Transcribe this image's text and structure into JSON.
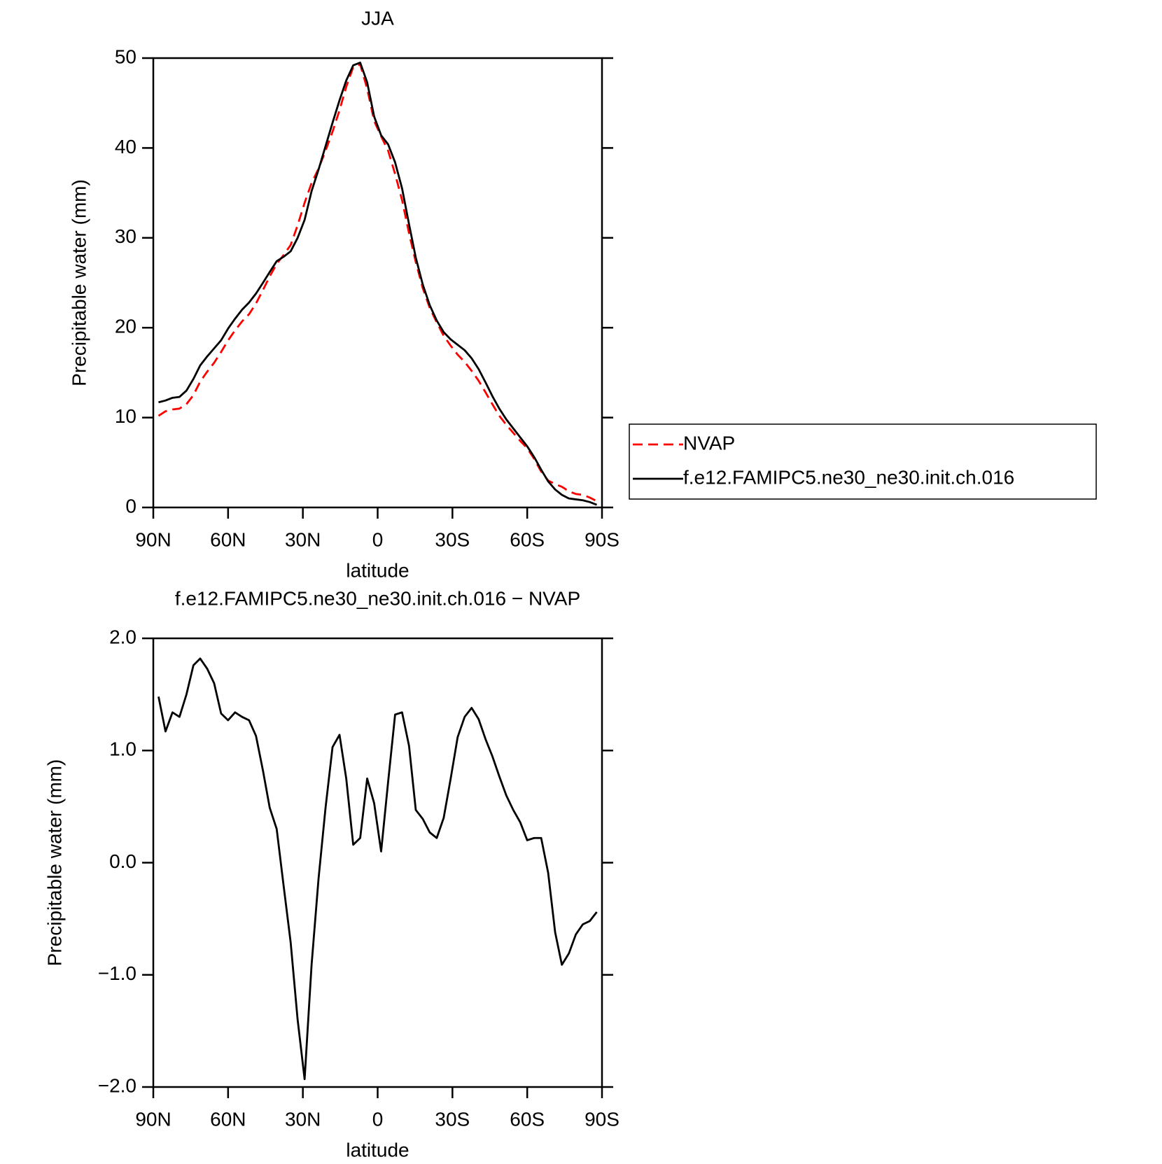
{
  "chart_data": [
    {
      "type": "line",
      "title": "JJA",
      "x_label": "latitude",
      "y_label": "Precipitable water (mm)",
      "x": [
        87.9,
        85.1,
        82.3,
        79.5,
        76.7,
        73.9,
        71.2,
        68.4,
        65.6,
        62.8,
        60.0,
        57.2,
        54.4,
        51.6,
        48.8,
        46.0,
        43.3,
        40.5,
        37.7,
        34.9,
        32.1,
        29.3,
        26.5,
        23.7,
        20.9,
        18.1,
        15.3,
        12.6,
        9.8,
        7.0,
        4.2,
        1.4,
        -1.4,
        -4.2,
        -7.0,
        -9.8,
        -12.6,
        -15.3,
        -18.1,
        -20.9,
        -23.7,
        -26.5,
        -29.3,
        -32.1,
        -34.9,
        -37.7,
        -40.5,
        -43.3,
        -46.0,
        -48.8,
        -51.6,
        -54.4,
        -57.2,
        -60.0,
        -62.8,
        -65.6,
        -68.4,
        -71.2,
        -73.9,
        -76.7,
        -79.5,
        -82.3,
        -85.1,
        -87.9
      ],
      "series": [
        {
          "name": "NVAP",
          "color": "#ff0000",
          "style": "dashed",
          "values": [
            10.2,
            10.7,
            10.9,
            11.0,
            11.5,
            12.5,
            14.0,
            15.1,
            16.1,
            17.3,
            18.6,
            19.7,
            20.7,
            21.5,
            22.7,
            24.2,
            25.7,
            27.1,
            28.1,
            29.2,
            31.4,
            33.9,
            36.1,
            37.7,
            39.7,
            41.8,
            44.2,
            46.8,
            49.0,
            49.3,
            46.6,
            43.0,
            41.3,
            39.7,
            37.1,
            34.2,
            30.5,
            27.3,
            24.4,
            22.2,
            20.6,
            19.1,
            18.0,
            17.0,
            16.2,
            15.2,
            14.1,
            12.8,
            11.5,
            10.2,
            9.2,
            8.3,
            7.4,
            6.6,
            5.4,
            4.0,
            3.0,
            2.6,
            2.3,
            1.8,
            1.5,
            1.4,
            1.1,
            0.7
          ]
        },
        {
          "name": "f.e12.FAMIPC5.ne30_ne30.init.ch.016",
          "color": "#000000",
          "style": "solid",
          "values": [
            11.7,
            11.9,
            12.2,
            12.3,
            13.0,
            14.3,
            15.8,
            16.8,
            17.7,
            18.6,
            19.9,
            21.0,
            22.0,
            22.8,
            23.8,
            25.0,
            26.2,
            27.4,
            27.9,
            28.5,
            30.0,
            32.0,
            35.2,
            37.6,
            40.2,
            42.8,
            45.3,
            47.5,
            49.2,
            49.5,
            47.3,
            43.5,
            41.4,
            40.4,
            38.4,
            35.5,
            31.5,
            27.8,
            24.8,
            22.5,
            20.8,
            19.5,
            18.7,
            18.1,
            17.5,
            16.6,
            15.4,
            13.9,
            12.4,
            11.0,
            9.8,
            8.8,
            7.8,
            6.8,
            5.6,
            4.2,
            2.9,
            2.0,
            1.4,
            1.0,
            0.9,
            0.8,
            0.6,
            0.3
          ]
        }
      ],
      "xlim": [
        90,
        -90
      ],
      "xticks": [
        {
          "value": 90,
          "label": "90N"
        },
        {
          "value": 60,
          "label": "60N"
        },
        {
          "value": 30,
          "label": "30N"
        },
        0,
        {
          "value": -30,
          "label": "30S"
        },
        {
          "value": -60,
          "label": "60S"
        },
        {
          "value": -90,
          "label": "90S"
        }
      ],
      "ylim": [
        0,
        50
      ],
      "yticks": [
        0,
        10,
        20,
        30,
        40,
        50
      ],
      "legend": "right"
    },
    {
      "type": "line",
      "title": "f.e12.FAMIPC5.ne30_ne30.init.ch.016 − NVAP",
      "x_label": "latitude",
      "y_label": "Precipitable water (mm)",
      "x": [
        87.9,
        85.1,
        82.3,
        79.5,
        76.7,
        73.9,
        71.2,
        68.4,
        65.6,
        62.8,
        60.0,
        57.2,
        54.4,
        51.6,
        48.8,
        46.0,
        43.3,
        40.5,
        37.7,
        34.9,
        32.1,
        29.3,
        26.5,
        23.7,
        20.9,
        18.1,
        15.3,
        12.6,
        9.8,
        7.0,
        4.2,
        1.4,
        -1.4,
        -4.2,
        -7.0,
        -9.8,
        -12.6,
        -15.3,
        -18.1,
        -20.9,
        -23.7,
        -26.5,
        -29.3,
        -32.1,
        -34.9,
        -37.7,
        -40.5,
        -43.3,
        -46.0,
        -48.8,
        -51.6,
        -54.4,
        -57.2,
        -60.0,
        -62.8,
        -65.6,
        -68.4,
        -71.2,
        -73.9,
        -76.7,
        -79.5,
        -82.3,
        -85.1,
        -87.9
      ],
      "values": [
        1.48,
        1.17,
        1.34,
        1.3,
        1.5,
        1.76,
        1.82,
        1.73,
        1.6,
        1.33,
        1.27,
        1.34,
        1.3,
        1.27,
        1.13,
        0.82,
        0.49,
        0.3,
        -0.21,
        -0.71,
        -1.4,
        -1.93,
        -0.91,
        -0.14,
        0.49,
        1.03,
        1.14,
        0.75,
        0.16,
        0.22,
        0.75,
        0.53,
        0.1,
        0.72,
        1.32,
        1.34,
        1.04,
        0.47,
        0.39,
        0.27,
        0.22,
        0.4,
        0.75,
        1.12,
        1.3,
        1.38,
        1.28,
        1.1,
        0.95,
        0.77,
        0.6,
        0.47,
        0.36,
        0.2,
        0.22,
        0.22,
        -0.09,
        -0.62,
        -0.91,
        -0.81,
        -0.64,
        -0.55,
        -0.52,
        -0.44
      ],
      "color": "#000000",
      "xlim": [
        90,
        -90
      ],
      "xticks": [
        {
          "value": 90,
          "label": "90N"
        },
        {
          "value": 60,
          "label": "60N"
        },
        {
          "value": 30,
          "label": "30N"
        },
        0,
        {
          "value": -30,
          "label": "30S"
        },
        {
          "value": -60,
          "label": "60S"
        },
        {
          "value": -90,
          "label": "90S"
        }
      ],
      "ylim": [
        -2,
        2
      ],
      "yticks": [
        {
          "value": -2,
          "label": "−2.0"
        },
        {
          "value": -1,
          "label": "−1.0"
        },
        {
          "value": 0,
          "label": "0.0"
        },
        {
          "value": 1,
          "label": "1.0"
        },
        {
          "value": 2,
          "label": "2.0"
        }
      ]
    }
  ]
}
